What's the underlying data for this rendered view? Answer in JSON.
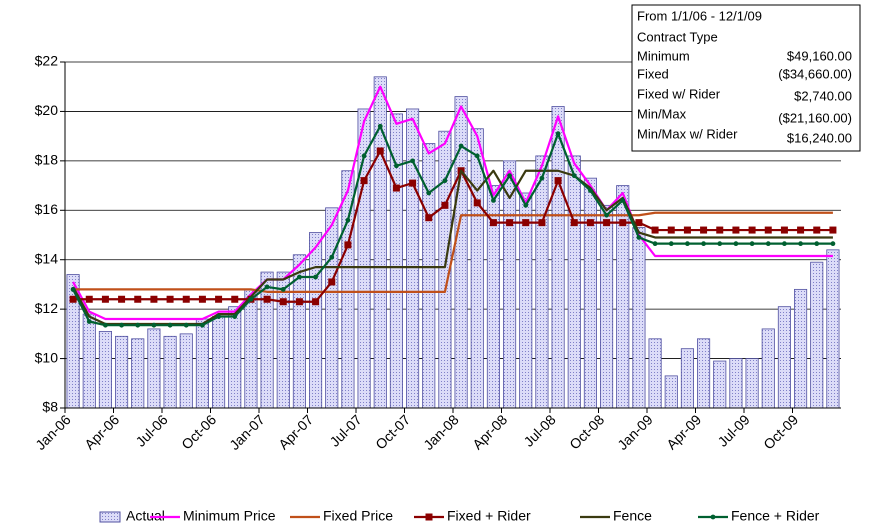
{
  "chart_data": {
    "type": "combo",
    "categories": [
      "Jan-06",
      null,
      null,
      "Apr-06",
      null,
      null,
      "Jul-06",
      null,
      null,
      "Oct-06",
      null,
      null,
      "Jan-07",
      null,
      null,
      "Apr-07",
      null,
      null,
      "Jul-07",
      null,
      null,
      "Oct-07",
      null,
      null,
      "Jan-08",
      null,
      null,
      "Apr-08",
      null,
      null,
      "Jul-08",
      null,
      null,
      "Oct-08",
      null,
      null,
      "Jan-09",
      null,
      null,
      "Apr-09",
      null,
      null,
      "Jul-09",
      null,
      null,
      "Oct-09",
      null,
      null
    ],
    "ylim": [
      8,
      22
    ],
    "yticks": [
      {
        "value": 8,
        "label": "$8"
      },
      {
        "value": 10,
        "label": "$10"
      },
      {
        "value": 12,
        "label": "$12"
      },
      {
        "value": 14,
        "label": "$14"
      },
      {
        "value": 16,
        "label": "$16"
      },
      {
        "value": 18,
        "label": "$18"
      },
      {
        "value": 20,
        "label": "$20"
      },
      {
        "value": 22,
        "label": "$22"
      }
    ],
    "grid": true,
    "legend": "bottom",
    "series": [
      {
        "name": "Actual",
        "type": "bar",
        "color": "#c8c8f0",
        "values": [
          13.4,
          11.8,
          11.1,
          10.9,
          10.8,
          11.2,
          10.9,
          11.0,
          11.6,
          11.7,
          12.1,
          12.8,
          13.5,
          13.5,
          14.2,
          15.1,
          16.1,
          17.6,
          20.1,
          21.4,
          19.9,
          20.1,
          18.7,
          19.2,
          20.6,
          19.3,
          17.0,
          18.0,
          16.7,
          18.2,
          20.2,
          18.2,
          17.3,
          16.2,
          17.0,
          15.3,
          10.8,
          9.3,
          10.4,
          10.8,
          9.9,
          10.0,
          10.0,
          11.2,
          12.1,
          12.8,
          13.9,
          14.4
        ]
      },
      {
        "name": "Minimum Price",
        "type": "line",
        "color": "#ff00ff",
        "values": [
          13.1,
          11.9,
          11.6,
          11.6,
          11.6,
          11.6,
          11.6,
          11.6,
          11.6,
          11.9,
          11.9,
          12.6,
          13.2,
          13.2,
          13.8,
          14.5,
          15.4,
          16.8,
          19.6,
          21.0,
          19.5,
          19.7,
          18.3,
          18.7,
          20.2,
          19.0,
          16.6,
          17.6,
          16.3,
          17.8,
          19.8,
          17.9,
          17.0,
          16.0,
          16.7,
          15.0,
          14.15,
          14.15,
          14.15,
          14.15,
          14.15,
          14.15,
          14.15,
          14.15,
          14.15,
          14.15,
          14.15,
          14.15
        ]
      },
      {
        "name": "Fixed Price",
        "type": "line",
        "color": "#c0501a",
        "values": [
          12.8,
          12.8,
          12.8,
          12.8,
          12.8,
          12.8,
          12.8,
          12.8,
          12.8,
          12.8,
          12.8,
          12.8,
          12.7,
          12.7,
          12.7,
          12.7,
          12.7,
          12.7,
          12.7,
          12.7,
          12.7,
          12.7,
          12.7,
          12.7,
          15.8,
          15.8,
          15.8,
          15.8,
          15.8,
          15.8,
          15.8,
          15.8,
          15.8,
          15.8,
          15.8,
          15.8,
          15.9,
          15.9,
          15.9,
          15.9,
          15.9,
          15.9,
          15.9,
          15.9,
          15.9,
          15.9,
          15.9,
          15.9
        ]
      },
      {
        "name": "Fixed + Rider",
        "type": "line",
        "marker": "square",
        "color": "#8b0000",
        "values": [
          12.4,
          12.4,
          12.4,
          12.4,
          12.4,
          12.4,
          12.4,
          12.4,
          12.4,
          12.4,
          12.4,
          12.4,
          12.4,
          12.3,
          12.3,
          12.3,
          13.1,
          14.6,
          17.2,
          18.4,
          16.9,
          17.1,
          15.7,
          16.2,
          17.6,
          16.3,
          15.5,
          15.5,
          15.5,
          15.5,
          17.2,
          15.5,
          15.5,
          15.5,
          15.5,
          15.5,
          15.2,
          15.2,
          15.2,
          15.2,
          15.2,
          15.2,
          15.2,
          15.2,
          15.2,
          15.2,
          15.2,
          15.2
        ]
      },
      {
        "name": "Fence",
        "type": "line",
        "color": "#3a3a10",
        "values": [
          12.9,
          11.7,
          11.4,
          11.4,
          11.4,
          11.4,
          11.4,
          11.4,
          11.4,
          11.8,
          11.8,
          12.5,
          13.2,
          13.2,
          13.5,
          13.7,
          13.7,
          13.7,
          13.7,
          13.7,
          13.7,
          13.7,
          13.7,
          13.7,
          17.6,
          16.8,
          17.6,
          16.5,
          17.6,
          17.6,
          17.6,
          17.4,
          16.9,
          16.0,
          16.5,
          15.1,
          14.9,
          14.9,
          14.9,
          14.9,
          14.9,
          14.9,
          14.9,
          14.9,
          14.9,
          14.9,
          14.9,
          14.9
        ]
      },
      {
        "name": "Fence + Rider",
        "type": "line",
        "marker": "circle",
        "color": "#006030",
        "values": [
          12.8,
          11.5,
          11.35,
          11.35,
          11.35,
          11.35,
          11.35,
          11.35,
          11.35,
          11.7,
          11.7,
          12.4,
          12.9,
          12.8,
          13.3,
          13.3,
          14.1,
          15.6,
          18.2,
          19.4,
          17.8,
          18.0,
          16.7,
          17.2,
          18.6,
          18.2,
          16.4,
          17.4,
          16.2,
          17.3,
          19.1,
          17.4,
          16.8,
          15.8,
          16.4,
          14.9,
          14.65,
          14.65,
          14.65,
          14.65,
          14.65,
          14.65,
          14.65,
          14.65,
          14.65,
          14.65,
          14.65,
          14.65
        ]
      }
    ],
    "info_box": {
      "title": "From 1/1/06 - 12/1/09",
      "subtitle": "Contract Type",
      "rows": [
        {
          "label": "Minimum",
          "value": "$49,160.00"
        },
        {
          "label": "Fixed",
          "value": "($34,660.00)"
        },
        {
          "label": "Fixed w/ Rider",
          "value": "$2,740.00"
        },
        {
          "label": "Min/Max",
          "value": "($21,160.00)"
        },
        {
          "label": "Min/Max w/ Rider",
          "value": "$16,240.00"
        }
      ]
    }
  }
}
